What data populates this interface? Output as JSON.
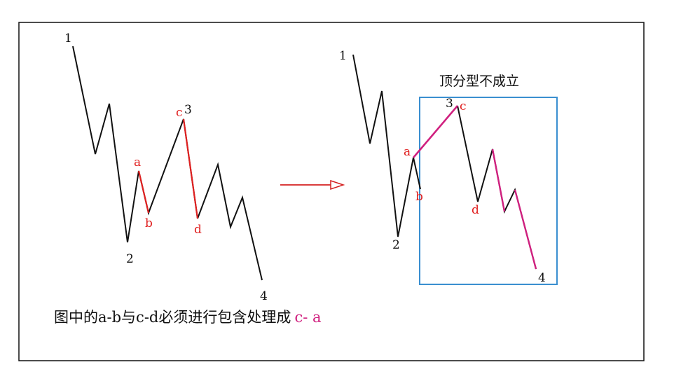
{
  "left_diagram": {
    "labels": {
      "p1": "1",
      "p2": "2",
      "p3": "3",
      "p4": "4",
      "a": "a",
      "b": "b",
      "c": "c",
      "d": "d"
    }
  },
  "right_diagram": {
    "box_title": "顶分型不成立",
    "labels": {
      "p1": "1",
      "p2": "2",
      "p3": "3",
      "p4": "4",
      "a": "a",
      "b": "b",
      "c": "c",
      "d": "d"
    }
  },
  "caption": {
    "text": "图中的a-b与c-d必须进行包含处理成",
    "highlight": "c- a"
  },
  "colors": {
    "line": "#111111",
    "red": "#e02020",
    "magenta": "#d0207f",
    "box": "#3a8fd0",
    "arrow": "#d42020"
  }
}
